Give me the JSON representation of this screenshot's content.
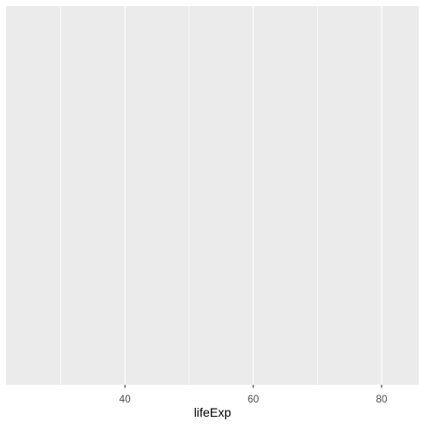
{
  "chart_data": {
    "type": "scatter",
    "title": "",
    "xlabel": "lifeExp",
    "ylabel": "",
    "xlim": [
      21.5,
      85.8
    ],
    "x_major_ticks": [
      40,
      60,
      80
    ],
    "x_minor_gridlines": [
      30,
      50,
      70
    ],
    "y_ticks": [],
    "series": [],
    "grid": true,
    "panel_background": "#ebebeb",
    "gridline_color": "#ffffff",
    "tick_label_color": "#4d4d4d",
    "title_color": "#000000"
  }
}
